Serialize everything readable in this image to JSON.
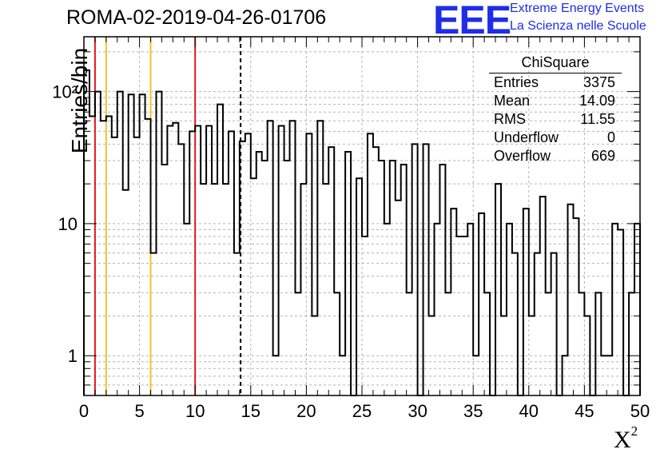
{
  "header": {
    "title": "ROMA-02-2019-04-26-01706",
    "logo": "EEE",
    "logo_line1": "Extreme Energy Events",
    "logo_line2": "La Scienza nelle Scuole"
  },
  "stats_box": {
    "title": "ChiSquare",
    "rows": [
      {
        "label": "Entries",
        "value": "3375"
      },
      {
        "label": "Mean",
        "value": "14.09"
      },
      {
        "label": "RMS",
        "value": "11.55"
      },
      {
        "label": "Underflow",
        "value": "0"
      },
      {
        "label": "Overflow",
        "value": "669"
      }
    ]
  },
  "chart_data": {
    "type": "bar",
    "style": "step-histogram",
    "title": "ROMA-02-2019-04-26-01706",
    "xlabel": "X²",
    "ylabel": "Entries/bin",
    "xlim": [
      0,
      50
    ],
    "ylim": [
      0.5,
      260
    ],
    "yscale": "log",
    "grid": true,
    "bin_width": 0.5,
    "x_ticks": [
      "0",
      "5",
      "10",
      "15",
      "20",
      "25",
      "30",
      "35",
      "40",
      "45",
      "50"
    ],
    "y_ticks": [
      "1",
      "10",
      "10²"
    ],
    "values": [
      145,
      65,
      100,
      60,
      65,
      45,
      100,
      18,
      95,
      45,
      95,
      62,
      6,
      100,
      28,
      55,
      58,
      40,
      10,
      50,
      55,
      20,
      55,
      20,
      80,
      20,
      50,
      6,
      42,
      48,
      22,
      35,
      30,
      60,
      1,
      55,
      30,
      60,
      3,
      20,
      48,
      2,
      60,
      20,
      38,
      3,
      1,
      35,
      0.4,
      22,
      8,
      48,
      38,
      30,
      10,
      30,
      15,
      28,
      3,
      40,
      0.4,
      40,
      2,
      10,
      28,
      3,
      13,
      8,
      8,
      10,
      1,
      12,
      3,
      0.4,
      20,
      2,
      10,
      6,
      0.4,
      13,
      2,
      6,
      16,
      3,
      6,
      0.4,
      1,
      14,
      11,
      3,
      2,
      0.4,
      3,
      1,
      1,
      10,
      9,
      0.4,
      3,
      10
    ],
    "reference_lines": [
      {
        "x": 1,
        "color": "#e0191f",
        "style": "solid"
      },
      {
        "x": 2,
        "color": "#f5c22a",
        "style": "solid"
      },
      {
        "x": 6,
        "color": "#f5c22a",
        "style": "solid"
      },
      {
        "x": 10,
        "color": "#e0191f",
        "style": "solid"
      },
      {
        "x": 14.09,
        "color": "#000000",
        "style": "dashed"
      }
    ]
  },
  "colors": {
    "logo_blue": "#1f2ee6",
    "histogram_line": "#000000",
    "grid": "#b3b3b3"
  }
}
